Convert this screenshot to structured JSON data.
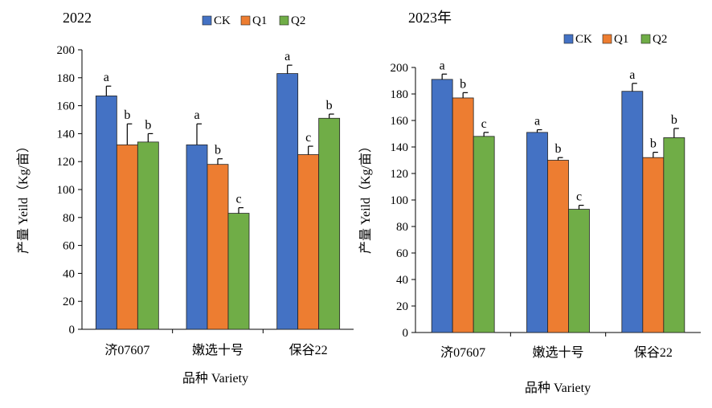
{
  "chart_data": [
    {
      "type": "bar",
      "title": "2022",
      "categories": [
        "济07607",
        "嫩选十号",
        "保谷22"
      ],
      "xlabel": "品种 Variety",
      "ylabel": "产量 Yeild（Kg/亩）",
      "ylim": [
        0,
        200
      ],
      "yticks": [
        0,
        20,
        40,
        60,
        80,
        100,
        120,
        140,
        160,
        180,
        200
      ],
      "legend_position": "top",
      "series": [
        {
          "name": "CK",
          "color": "#4472C4",
          "values": [
            167,
            132,
            183
          ],
          "errors": [
            7,
            15,
            6
          ],
          "letters": [
            "a",
            "a",
            "a"
          ]
        },
        {
          "name": "Q1",
          "color": "#ED7D31",
          "values": [
            132,
            118,
            125
          ],
          "errors": [
            15,
            4,
            6
          ],
          "letters": [
            "b",
            "b",
            "c"
          ]
        },
        {
          "name": "Q2",
          "color": "#70AD47",
          "values": [
            134,
            83,
            151
          ],
          "errors": [
            6,
            4,
            3
          ],
          "letters": [
            "b",
            "c",
            "b"
          ]
        }
      ]
    },
    {
      "type": "bar",
      "title": "2023年",
      "categories": [
        "济07607",
        "嫩选十号",
        "保谷22"
      ],
      "xlabel": "品种 Variety",
      "ylabel": "产量 Yeild（Kg/亩）",
      "ylim": [
        0,
        200
      ],
      "yticks": [
        0,
        20,
        40,
        60,
        80,
        100,
        120,
        140,
        160,
        180,
        200
      ],
      "legend_position": "top-right",
      "series": [
        {
          "name": "CK",
          "color": "#4472C4",
          "values": [
            191,
            151,
            182
          ],
          "errors": [
            4,
            2,
            6
          ],
          "letters": [
            "a",
            "a",
            "a"
          ]
        },
        {
          "name": "Q1",
          "color": "#ED7D31",
          "values": [
            177,
            130,
            132
          ],
          "errors": [
            4,
            2,
            4
          ],
          "letters": [
            "b",
            "b",
            "b"
          ]
        },
        {
          "name": "Q2",
          "color": "#70AD47",
          "values": [
            148,
            93,
            147
          ],
          "errors": [
            3,
            3,
            7
          ],
          "letters": [
            "c",
            "c",
            "b"
          ]
        }
      ]
    }
  ]
}
